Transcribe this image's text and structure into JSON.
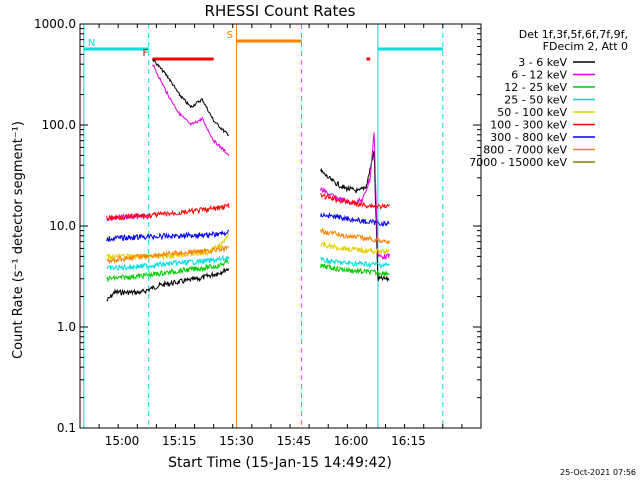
{
  "chart_data": {
    "type": "line",
    "title": "RHESSI Count Rates",
    "xlabel": "Start Time (15-Jan-15 14:49:42)",
    "ylabel": "Count Rate (s⁻¹ detector segment⁻¹)",
    "y_scale": "log",
    "ylim": [
      0.1,
      1000
    ],
    "xlim": [
      "14:49",
      "16:34"
    ],
    "x_ticks": [
      "15:00",
      "15:15",
      "15:30",
      "15:45",
      "16:00",
      "16:15"
    ],
    "y_ticks": [
      "0.1",
      "1.0",
      "10.0",
      "100.0",
      "1000.0"
    ],
    "legend_header": [
      "Det 1f,3f,5f,6f,7f,9f,",
      "FDecim 2, Att 0"
    ],
    "legend_position": "right",
    "series": [
      {
        "name": "3 - 6 keV",
        "color": "#000000",
        "seg1": [
          [
            "14:56",
            1.8
          ],
          [
            "14:58",
            2.2
          ],
          [
            "15:05",
            2.2
          ],
          [
            "15:10",
            2.6
          ],
          [
            "15:20",
            3.0
          ],
          [
            "15:25",
            3.4
          ],
          [
            "15:28",
            3.8
          ]
        ],
        "flare1": [
          [
            "15:08",
            450
          ],
          [
            "15:12",
            300
          ],
          [
            "15:15",
            200
          ],
          [
            "15:18",
            150
          ],
          [
            "15:21",
            180
          ],
          [
            "15:24",
            110
          ],
          [
            "15:27",
            85
          ],
          [
            "15:28",
            80
          ]
        ],
        "seg2": [
          [
            "15:52",
            35
          ],
          [
            "15:55",
            28
          ],
          [
            "15:58",
            24
          ],
          [
            "16:02",
            22
          ],
          [
            "16:04",
            25
          ],
          [
            "16:06",
            55
          ],
          [
            "16:07",
            3.0
          ],
          [
            "16:10",
            3.0
          ]
        ]
      },
      {
        "name": "6 - 12 keV",
        "color": "#e000e0",
        "seg1": [
          [
            "14:56",
            12
          ],
          [
            "15:07",
            12.5
          ]
        ],
        "flare1": [
          [
            "15:08",
            400
          ],
          [
            "15:12",
            200
          ],
          [
            "15:15",
            130
          ],
          [
            "15:18",
            100
          ],
          [
            "15:21",
            115
          ],
          [
            "15:24",
            70
          ],
          [
            "15:27",
            55
          ],
          [
            "15:28",
            50
          ]
        ],
        "seg2": [
          [
            "15:52",
            23
          ],
          [
            "15:56",
            19
          ],
          [
            "16:00",
            17
          ],
          [
            "16:03",
            18
          ],
          [
            "16:05",
            30
          ],
          [
            "16:06",
            85
          ],
          [
            "16:07",
            5.0
          ],
          [
            "16:10",
            5.0
          ]
        ]
      },
      {
        "name": "12 - 25 keV",
        "color": "#00cc00",
        "seg1": [
          [
            "14:56",
            3.0
          ],
          [
            "15:05",
            3.2
          ],
          [
            "15:15",
            3.6
          ],
          [
            "15:25",
            4.0
          ],
          [
            "15:28",
            4.5
          ]
        ],
        "seg2": [
          [
            "15:52",
            4.0
          ],
          [
            "15:58",
            3.7
          ],
          [
            "16:04",
            3.5
          ],
          [
            "16:10",
            3.4
          ]
        ]
      },
      {
        "name": "25 - 50 keV",
        "color": "#00dddd",
        "seg1": [
          [
            "14:56",
            3.8
          ],
          [
            "15:05",
            4.0
          ],
          [
            "15:15",
            4.3
          ],
          [
            "15:25",
            4.6
          ],
          [
            "15:28",
            4.9
          ]
        ],
        "seg2": [
          [
            "15:52",
            4.6
          ],
          [
            "15:58",
            4.3
          ],
          [
            "16:04",
            4.2
          ],
          [
            "16:10",
            4.1
          ]
        ]
      },
      {
        "name": "50 - 100 keV",
        "color": "#e0d000",
        "seg1": [
          [
            "14:56",
            5.0
          ],
          [
            "15:10",
            5.0
          ],
          [
            "15:22",
            5.4
          ],
          [
            "15:26",
            6.5
          ],
          [
            "15:28",
            8.5
          ]
        ],
        "seg2": [
          [
            "15:52",
            6.5
          ],
          [
            "15:58",
            6.0
          ],
          [
            "16:04",
            5.7
          ],
          [
            "16:10",
            5.5
          ]
        ]
      },
      {
        "name": "100 - 300 keV",
        "color": "#ff0000",
        "seg1": [
          [
            "14:56",
            12
          ],
          [
            "15:05",
            12.5
          ],
          [
            "15:15",
            13.5
          ],
          [
            "15:25",
            15
          ],
          [
            "15:28",
            16
          ]
        ],
        "seg2": [
          [
            "15:52",
            20
          ],
          [
            "15:58",
            17.5
          ],
          [
            "16:04",
            16
          ],
          [
            "16:10",
            15.5
          ]
        ]
      },
      {
        "name": "300 - 800 keV",
        "color": "#0000ee",
        "seg1": [
          [
            "14:56",
            7.5
          ],
          [
            "15:05",
            7.8
          ],
          [
            "15:15",
            8.0
          ],
          [
            "15:25",
            8.3
          ],
          [
            "15:28",
            8.6
          ]
        ],
        "seg2": [
          [
            "15:52",
            13
          ],
          [
            "15:58",
            12
          ],
          [
            "16:04",
            11
          ],
          [
            "16:10",
            10.5
          ]
        ]
      },
      {
        "name": "800 - 7000 keV",
        "color": "#ff8000",
        "seg1": [
          [
            "14:56",
            4.5
          ],
          [
            "15:05",
            5.0
          ],
          [
            "15:15",
            5.4
          ],
          [
            "15:25",
            5.8
          ],
          [
            "15:28",
            6.0
          ]
        ],
        "seg2": [
          [
            "15:52",
            9.0
          ],
          [
            "15:58",
            8.0
          ],
          [
            "16:04",
            7.5
          ],
          [
            "16:10",
            7.0
          ]
        ]
      },
      {
        "name": "7000 - 15000 keV",
        "color": "#808000",
        "seg1": [],
        "seg2": []
      }
    ],
    "attenuator_markers": [
      {
        "label": "N",
        "color": "#00dddd",
        "time_start": "14:50",
        "time_end": "15:07"
      },
      {
        "label": "F",
        "color": "#ff0000",
        "time_start": "15:08",
        "time_end": "15:24"
      },
      {
        "label": "S",
        "color": "#ff8000",
        "time_start": "15:30",
        "time_end": "15:47"
      },
      {
        "label": "",
        "color": "#ff0000",
        "time_start": "16:04",
        "time_end": "16:05"
      },
      {
        "label": "",
        "color": "#00dddd",
        "time_start": "16:07",
        "time_end": "16:24"
      }
    ],
    "vertical_lines": [
      {
        "time": "14:50",
        "color": "#00dddd",
        "style": "solid"
      },
      {
        "time": "15:07",
        "color": "#00dddd",
        "style": "dashed"
      },
      {
        "time": "15:30",
        "color": "#ff8000",
        "style": "solid"
      },
      {
        "time": "15:47",
        "color": "#ff8000",
        "style": "dashed"
      },
      {
        "time": "16:07",
        "color": "#00dddd",
        "style": "solid"
      },
      {
        "time": "16:24",
        "color": "#00dddd",
        "style": "dashed"
      }
    ]
  },
  "footer_timestamp": "25-Oct-2021 07:56"
}
